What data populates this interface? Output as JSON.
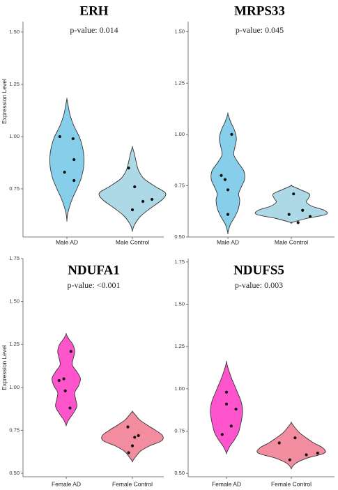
{
  "chart_data": [
    {
      "type": "violin",
      "title": "ERH",
      "annotation": "p-value: 0.014",
      "ylabel": "Expression Level",
      "ylim": [
        0.5,
        1.55
      ],
      "yticks": [
        "0.75",
        "1.00",
        "1.25",
        "1.50"
      ],
      "categories": [
        "Male AD",
        "Male Control"
      ],
      "colors": [
        "#87CEEB",
        "#ADD8E6"
      ],
      "violins": [
        {
          "min": 0.6,
          "max": 1.18,
          "profile": [
            [
              0.6,
              0
            ],
            [
              0.64,
              0.05
            ],
            [
              0.7,
              0.22
            ],
            [
              0.75,
              0.42
            ],
            [
              0.8,
              0.6
            ],
            [
              0.85,
              0.7
            ],
            [
              0.9,
              0.72
            ],
            [
              0.95,
              0.66
            ],
            [
              1.0,
              0.52
            ],
            [
              1.05,
              0.3
            ],
            [
              1.1,
              0.14
            ],
            [
              1.15,
              0.05
            ],
            [
              1.18,
              0
            ]
          ]
        },
        {
          "min": 0.55,
          "max": 0.95,
          "profile": [
            [
              0.55,
              0
            ],
            [
              0.58,
              0.06
            ],
            [
              0.62,
              0.22
            ],
            [
              0.66,
              0.5
            ],
            [
              0.7,
              0.8
            ],
            [
              0.73,
              0.88
            ],
            [
              0.76,
              0.62
            ],
            [
              0.8,
              0.3
            ],
            [
              0.84,
              0.16
            ],
            [
              0.88,
              0.1
            ],
            [
              0.92,
              0.05
            ],
            [
              0.95,
              0
            ]
          ]
        }
      ],
      "points": [
        [
          [
            -0.3,
            1.0
          ],
          [
            0.26,
            0.99
          ],
          [
            0.3,
            0.89
          ],
          [
            -0.1,
            0.83
          ],
          [
            0.3,
            0.79
          ]
        ],
        [
          [
            -0.1,
            0.85
          ],
          [
            0.06,
            0.76
          ],
          [
            0.0,
            0.65
          ],
          [
            0.28,
            0.69
          ],
          [
            0.52,
            0.7
          ]
        ]
      ]
    },
    {
      "type": "violin",
      "title": "MRPS33",
      "annotation": "p-value: 0.045",
      "ylabel": "",
      "ylim": [
        0.5,
        1.55
      ],
      "yticks": [
        "0.50",
        "0.75",
        "1.00",
        "1.25",
        "1.50"
      ],
      "categories": [
        "Male AD",
        "Male Control"
      ],
      "colors": [
        "#87CEEB",
        "#ADD8E6"
      ],
      "violins": [
        {
          "min": 0.52,
          "max": 1.1,
          "profile": [
            [
              0.52,
              0
            ],
            [
              0.56,
              0.1
            ],
            [
              0.6,
              0.3
            ],
            [
              0.64,
              0.45
            ],
            [
              0.68,
              0.5
            ],
            [
              0.71,
              0.45
            ],
            [
              0.74,
              0.55
            ],
            [
              0.78,
              0.7
            ],
            [
              0.82,
              0.68
            ],
            [
              0.86,
              0.45
            ],
            [
              0.9,
              0.25
            ],
            [
              0.94,
              0.3
            ],
            [
              0.98,
              0.36
            ],
            [
              1.02,
              0.28
            ],
            [
              1.06,
              0.12
            ],
            [
              1.1,
              0
            ]
          ]
        },
        {
          "min": 0.57,
          "max": 0.75,
          "profile": [
            [
              0.57,
              0
            ],
            [
              0.59,
              0.4
            ],
            [
              0.61,
              0.92
            ],
            [
              0.63,
              0.88
            ],
            [
              0.65,
              0.55
            ],
            [
              0.67,
              0.4
            ],
            [
              0.69,
              0.46
            ],
            [
              0.71,
              0.48
            ],
            [
              0.73,
              0.25
            ],
            [
              0.75,
              0
            ]
          ]
        }
      ],
      "points": [
        [
          [
            -0.12,
            0.78
          ],
          [
            0.16,
            1.0
          ],
          [
            -0.28,
            0.8
          ],
          [
            0.0,
            0.73
          ],
          [
            0.0,
            0.61
          ]
        ],
        [
          [
            0.06,
            0.71
          ],
          [
            -0.06,
            0.61
          ],
          [
            0.3,
            0.63
          ],
          [
            0.5,
            0.6
          ],
          [
            0.18,
            0.57
          ]
        ]
      ]
    },
    {
      "type": "violin",
      "title": "NDUFA1",
      "annotation": "p-value: <0.001",
      "ylabel": "Expression Level",
      "ylim": [
        0.5,
        1.75
      ],
      "yticks": [
        "0.50",
        "0.75",
        "1.00",
        "1.25",
        "1.50",
        "1.75"
      ],
      "categories": [
        "Female AD",
        "Female Control"
      ],
      "colors": [
        "#FF55CC",
        "#F28DA0"
      ],
      "violins": [
        {
          "min": 0.78,
          "max": 1.31,
          "profile": [
            [
              0.78,
              0
            ],
            [
              0.81,
              0.1
            ],
            [
              0.85,
              0.3
            ],
            [
              0.89,
              0.45
            ],
            [
              0.93,
              0.4
            ],
            [
              0.97,
              0.36
            ],
            [
              1.01,
              0.52
            ],
            [
              1.05,
              0.6
            ],
            [
              1.09,
              0.46
            ],
            [
              1.13,
              0.26
            ],
            [
              1.17,
              0.3
            ],
            [
              1.21,
              0.36
            ],
            [
              1.25,
              0.28
            ],
            [
              1.28,
              0.12
            ],
            [
              1.31,
              0
            ]
          ]
        },
        {
          "min": 0.57,
          "max": 0.86,
          "profile": [
            [
              0.57,
              0
            ],
            [
              0.6,
              0.1
            ],
            [
              0.63,
              0.22
            ],
            [
              0.66,
              0.46
            ],
            [
              0.69,
              0.78
            ],
            [
              0.72,
              0.8
            ],
            [
              0.75,
              0.62
            ],
            [
              0.78,
              0.4
            ],
            [
              0.81,
              0.2
            ],
            [
              0.84,
              0.08
            ],
            [
              0.86,
              0
            ]
          ]
        }
      ],
      "points": [
        [
          [
            0.2,
            1.21
          ],
          [
            -0.1,
            1.05
          ],
          [
            -0.3,
            1.04
          ],
          [
            -0.04,
            0.98
          ],
          [
            0.16,
            0.88
          ]
        ],
        [
          [
            -0.12,
            0.77
          ],
          [
            0.16,
            0.72
          ],
          [
            0.06,
            0.71
          ],
          [
            0.0,
            0.66
          ],
          [
            -0.1,
            0.62
          ]
        ]
      ]
    },
    {
      "type": "violin",
      "title": "NDUFS5",
      "annotation": "p-value: 0.003",
      "ylabel": "",
      "ylim": [
        0.5,
        1.75
      ],
      "yticks": [
        "0.50",
        "0.75",
        "1.00",
        "1.25",
        "1.50",
        "1.75"
      ],
      "categories": [
        "Female AD",
        "Female Control"
      ],
      "colors": [
        "#FF55CC",
        "#F28DA0"
      ],
      "violins": [
        {
          "min": 0.62,
          "max": 1.16,
          "profile": [
            [
              0.62,
              0
            ],
            [
              0.66,
              0.14
            ],
            [
              0.7,
              0.34
            ],
            [
              0.74,
              0.5
            ],
            [
              0.78,
              0.58
            ],
            [
              0.82,
              0.64
            ],
            [
              0.86,
              0.68
            ],
            [
              0.9,
              0.66
            ],
            [
              0.94,
              0.58
            ],
            [
              0.98,
              0.46
            ],
            [
              1.02,
              0.34
            ],
            [
              1.06,
              0.22
            ],
            [
              1.1,
              0.12
            ],
            [
              1.13,
              0.05
            ],
            [
              1.16,
              0
            ]
          ]
        },
        {
          "min": 0.53,
          "max": 0.8,
          "profile": [
            [
              0.53,
              0
            ],
            [
              0.56,
              0.12
            ],
            [
              0.59,
              0.42
            ],
            [
              0.62,
              0.88
            ],
            [
              0.65,
              0.84
            ],
            [
              0.68,
              0.6
            ],
            [
              0.71,
              0.4
            ],
            [
              0.74,
              0.22
            ],
            [
              0.77,
              0.1
            ],
            [
              0.8,
              0
            ]
          ]
        }
      ],
      "points": [
        [
          [
            0.0,
            0.98
          ],
          [
            0.0,
            0.91
          ],
          [
            0.4,
            0.88
          ],
          [
            0.2,
            0.78
          ],
          [
            -0.18,
            0.73
          ]
        ],
        [
          [
            -0.32,
            0.68
          ],
          [
            0.1,
            0.71
          ],
          [
            0.4,
            0.61
          ],
          [
            0.7,
            0.62
          ],
          [
            -0.04,
            0.58
          ]
        ]
      ]
    }
  ]
}
